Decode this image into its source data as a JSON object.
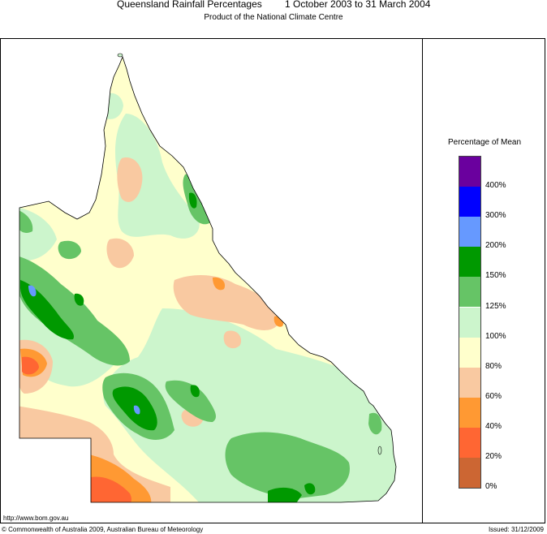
{
  "header": {
    "title": "Queensland Rainfall Percentages",
    "period": "1 October 2003 to 31 March 2004",
    "subtitle": "Product of the National Climate Centre"
  },
  "legend": {
    "title": "Percentage of Mean",
    "bands": [
      {
        "label": "400%",
        "color": "#6a009e"
      },
      {
        "label": "300%",
        "color": "#0000ff"
      },
      {
        "label": "200%",
        "color": "#6699ff"
      },
      {
        "label": "150%",
        "color": "#009900"
      },
      {
        "label": "125%",
        "color": "#66c466"
      },
      {
        "label": "100%",
        "color": "#ccf5cc"
      },
      {
        "label": "80%",
        "color": "#ffffcc"
      },
      {
        "label": "60%",
        "color": "#f9c9a1"
      },
      {
        "label": "40%",
        "color": "#ff9933"
      },
      {
        "label": "20%",
        "color": "#ff6633"
      },
      {
        "label": "0%",
        "color": "#cc6633"
      }
    ]
  },
  "footer": {
    "url": "http://www.bom.gov.au",
    "copyright": "© Commonwealth of Australia 2009, Australian Bureau of Meteorology",
    "issued": "Issued: 31/12/2009"
  }
}
